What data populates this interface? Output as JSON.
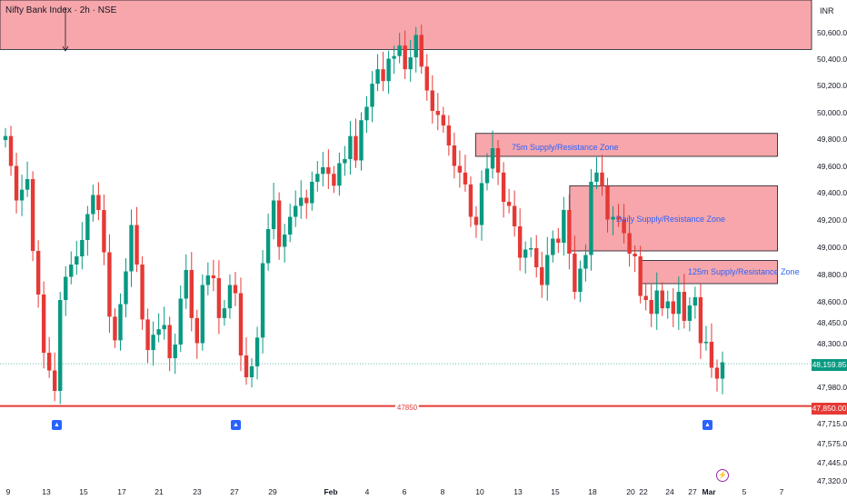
{
  "header": {
    "title": "Nifty Bank Index · 2h · NSE",
    "currency": "INR"
  },
  "badges": {
    "last_price": "48,159.85",
    "support": "47,850.00"
  },
  "zones": [
    {
      "label": "",
      "y_top": 51000,
      "y_bottom": 50480,
      "x_from": 0,
      "x_to": 1
    },
    {
      "label": "75m Supply/Resistance Zone",
      "y_top": 49850,
      "y_bottom": 49680,
      "x_from": 0.586,
      "x_to": 0.958
    },
    {
      "label": "Daily Supply/Resistance Zone",
      "y_top": 49460,
      "y_bottom": 48980,
      "x_from": 0.702,
      "x_to": 0.958
    },
    {
      "label": "125m Supply/Resistance Zone",
      "y_top": 48910,
      "y_bottom": 48740,
      "x_from": 0.79,
      "x_to": 0.958
    }
  ],
  "support_level": {
    "label": "47850",
    "value": 47850
  },
  "chart_data": {
    "type": "candlestick",
    "title": "Nifty Bank Index · 2h · NSE",
    "currency": "INR",
    "ylim": [
      47120,
      51000
    ],
    "y_ticks": [
      "50,600.00",
      "50,400.00",
      "50,200.00",
      "50,000.00",
      "49,800.00",
      "49,600.00",
      "49,400.00",
      "49,200.00",
      "49,000.00",
      "48,800.00",
      "48,600.00",
      "48,450.00",
      "48,300.00",
      "47,980.00",
      "47,715.00",
      "47,575.00",
      "47,445.00",
      "47,320.00"
    ],
    "y_tick_values": [
      50600,
      50400,
      50200,
      50000,
      49800,
      49600,
      49400,
      49200,
      49000,
      48800,
      48600,
      48450,
      48300,
      47980,
      47715,
      47575,
      47445,
      47320
    ],
    "x_ticks": [
      "9",
      "13",
      "15",
      "17",
      "21",
      "23",
      "27",
      "29",
      "Feb",
      "4",
      "6",
      "8",
      "10",
      "13",
      "15",
      "18",
      "20",
      "22",
      "24",
      "27",
      "Mar",
      "5",
      "7"
    ],
    "last_price": 48159.85,
    "support": 47850,
    "closes": [
      49830,
      49610,
      49350,
      49430,
      49510,
      48980,
      48660,
      48240,
      48110,
      47960,
      48620,
      48790,
      48880,
      48940,
      49060,
      49250,
      49390,
      49280,
      48970,
      48500,
      48330,
      48590,
      48830,
      49170,
      48880,
      48480,
      48260,
      48370,
      48410,
      48440,
      48200,
      48300,
      48630,
      48840,
      48490,
      48310,
      48730,
      48800,
      48780,
      48490,
      48560,
      48730,
      48670,
      48220,
      48060,
      48140,
      48350,
      48890,
      49140,
      49350,
      49010,
      49100,
      49230,
      49310,
      49370,
      49330,
      49490,
      49550,
      49600,
      49550,
      49460,
      49630,
      49660,
      49830,
      49650,
      49950,
      50050,
      50220,
      50330,
      50240,
      50410,
      50430,
      50510,
      50330,
      50420,
      50590,
      50350,
      50170,
      50020,
      49990,
      49910,
      49760,
      49610,
      49560,
      49470,
      49230,
      49170,
      49480,
      49590,
      49740,
      49560,
      49340,
      49310,
      49160,
      48930,
      48990,
      49000,
      48860,
      48730,
      48950,
      49070,
      49040,
      49280,
      48960,
      48680,
      48850,
      48950,
      49490,
      49560,
      49460,
      49210,
      49230,
      49210,
      49110,
      48960,
      48940,
      48650,
      48620,
      48520,
      48690,
      48560,
      48610,
      48520,
      48680,
      48470,
      48580,
      48640,
      48310,
      48320,
      48130,
      48050,
      48170
    ],
    "opens": [
      49800,
      49830,
      49610,
      49350,
      49430,
      49510,
      48980,
      48660,
      48240,
      48110,
      47960,
      48620,
      48790,
      48880,
      48940,
      49060,
      49250,
      49390,
      49280,
      48970,
      48500,
      48330,
      48590,
      48830,
      49170,
      48880,
      48480,
      48260,
      48370,
      48410,
      48440,
      48200,
      48300,
      48630,
      48840,
      48490,
      48310,
      48730,
      48800,
      48780,
      48490,
      48560,
      48730,
      48670,
      48220,
      48060,
      48140,
      48350,
      48890,
      49140,
      49350,
      49010,
      49100,
      49230,
      49310,
      49370,
      49330,
      49490,
      49550,
      49600,
      49550,
      49460,
      49630,
      49660,
      49830,
      49650,
      49950,
      50050,
      50220,
      50330,
      50240,
      50410,
      50430,
      50510,
      50330,
      50420,
      50590,
      50350,
      50170,
      50020,
      49990,
      49910,
      49760,
      49610,
      49560,
      49470,
      49230,
      49170,
      49480,
      49590,
      49740,
      49560,
      49340,
      49310,
      49160,
      48930,
      48990,
      49000,
      48860,
      48730,
      48950,
      49070,
      49040,
      49280,
      48960,
      48680,
      48850,
      48950,
      49490,
      49560,
      49460,
      49210,
      49230,
      49210,
      49110,
      48960,
      48940,
      48650,
      48620,
      48520,
      48690,
      48560,
      48610,
      48520,
      48680,
      48470,
      48580,
      48640,
      48310,
      48320,
      48130,
      48050
    ]
  }
}
